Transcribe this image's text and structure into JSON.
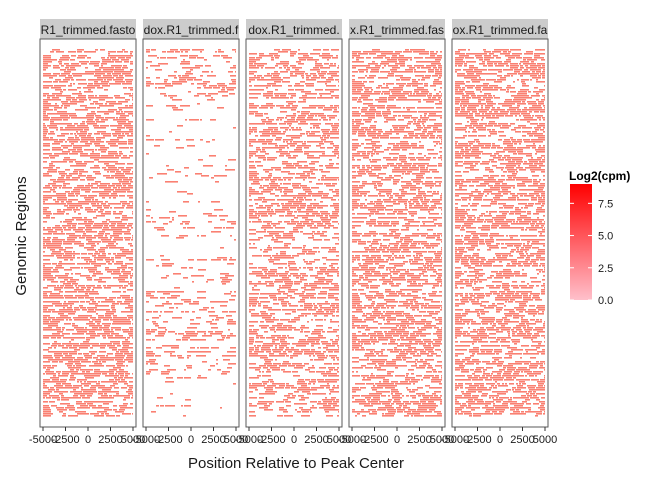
{
  "chart_data": {
    "type": "heatmap",
    "title": "",
    "xlabel": "Position Relative to Peak Center",
    "ylabel": "Genomic Regions",
    "xlim": [
      -5000,
      5000
    ],
    "x_ticks": [
      -5000,
      -2500,
      0,
      2500,
      5000
    ],
    "x_tick_labels": [
      "-5000",
      "-2500",
      "0",
      "2500",
      "5000"
    ],
    "panels": [
      {
        "label": "R1_trimmed.fasto",
        "density": 0.68
      },
      {
        "label": "dox.R1_trimmed.f",
        "density": 0.2
      },
      {
        "label": "dox.R1_trimmed.",
        "density": 0.55
      },
      {
        "label": "x.R1_trimmed.fas",
        "density": 0.64
      },
      {
        "label": "ox.R1_trimmed.fa",
        "density": 0.66
      }
    ],
    "legend": {
      "title": "Log2(cpm)",
      "ticks": [
        0,
        2.5,
        5,
        7.5
      ],
      "tick_labels": [
        "0.0",
        "2.5",
        "5.0",
        "7.5"
      ],
      "range": [
        0,
        9
      ],
      "low_color": "#ffc0cb",
      "high_color": "#ff0000",
      "position": "right"
    },
    "colors": {
      "cell": "#fa8072",
      "strip_bg": "#cccccc",
      "panel_border": "#595959"
    }
  }
}
